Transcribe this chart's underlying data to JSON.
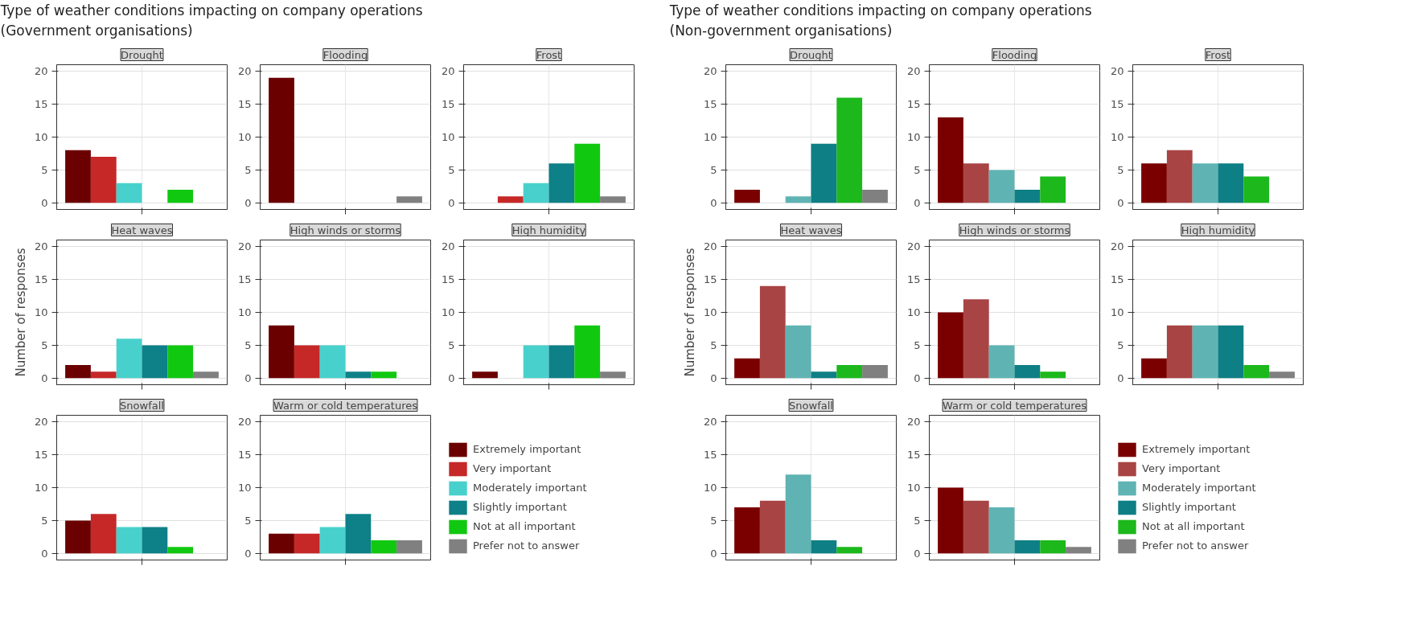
{
  "chart_data": [
    {
      "type": "other",
      "title": "Type of weather conditions impacting on company operations\n (Government organisations)"
    },
    {
      "type": "bar",
      "title": "Drought",
      "categories": [
        null
      ],
      "ylim": [
        -1,
        21
      ],
      "yticks": [
        0,
        5,
        10,
        15,
        20
      ],
      "grid": true,
      "tick_labels": "y",
      "series": [
        {
          "color": "#6b0000",
          "values": [
            8
          ]
        },
        {
          "color": "#c62828",
          "values": [
            7
          ]
        },
        {
          "color": "#48d1cc",
          "values": [
            3
          ]
        },
        {
          "values": [
            null
          ]
        },
        {
          "color": "#11c811",
          "values": [
            2
          ]
        },
        {
          "values": [
            null
          ]
        }
      ]
    },
    {
      "type": "bar",
      "title": "Flooding",
      "categories": [
        null
      ],
      "ylim": [
        -1,
        21
      ],
      "yticks": [
        0,
        5,
        10,
        15,
        20
      ],
      "grid": true,
      "tick_labels": "y",
      "series": [
        {
          "color": "#6b0000",
          "values": [
            19
          ]
        },
        {
          "values": [
            null
          ]
        },
        {
          "values": [
            null
          ]
        },
        {
          "values": [
            null
          ]
        },
        {
          "values": [
            null
          ]
        },
        {
          "color": "#808080",
          "values": [
            1
          ]
        }
      ]
    },
    {
      "type": "bar",
      "title": "Frost",
      "categories": [
        null
      ],
      "ylim": [
        -1,
        21
      ],
      "yticks": [
        0,
        5,
        10,
        15,
        20
      ],
      "grid": true,
      "tick_labels": "y",
      "series": [
        {
          "values": [
            null
          ]
        },
        {
          "color": "#c62828",
          "values": [
            1
          ]
        },
        {
          "color": "#48d1cc",
          "values": [
            3
          ]
        },
        {
          "color": "#0e8088",
          "values": [
            6
          ]
        },
        {
          "color": "#11c811",
          "values": [
            9
          ]
        },
        {
          "color": "#808080",
          "values": [
            1
          ]
        }
      ]
    },
    {
      "type": "bar",
      "title": "Heat waves",
      "ylabel": "Number of responses",
      "categories": [
        null
      ],
      "ylim": [
        -1,
        21
      ],
      "yticks": [
        0,
        5,
        10,
        15,
        20
      ],
      "grid": true,
      "tick_labels": "y",
      "series": [
        {
          "color": "#6b0000",
          "values": [
            2
          ]
        },
        {
          "color": "#c62828",
          "values": [
            1
          ]
        },
        {
          "color": "#48d1cc",
          "values": [
            6
          ]
        },
        {
          "color": "#0e8088",
          "values": [
            5
          ]
        },
        {
          "color": "#11c811",
          "values": [
            5
          ]
        },
        {
          "color": "#808080",
          "values": [
            1
          ]
        }
      ]
    },
    {
      "type": "bar",
      "title": "High winds or storms",
      "categories": [
        null
      ],
      "ylim": [
        -1,
        21
      ],
      "yticks": [
        0,
        5,
        10,
        15,
        20
      ],
      "grid": true,
      "tick_labels": "y",
      "series": [
        {
          "color": "#6b0000",
          "values": [
            8
          ]
        },
        {
          "color": "#c62828",
          "values": [
            5
          ]
        },
        {
          "color": "#48d1cc",
          "values": [
            5
          ]
        },
        {
          "color": "#0e8088",
          "values": [
            1
          ]
        },
        {
          "color": "#11c811",
          "values": [
            1
          ]
        },
        {
          "values": [
            null
          ]
        }
      ]
    },
    {
      "type": "bar",
      "title": "High humidity",
      "categories": [
        null
      ],
      "ylim": [
        -1,
        21
      ],
      "yticks": [
        0,
        5,
        10,
        15,
        20
      ],
      "grid": true,
      "tick_labels": "y",
      "series": [
        {
          "color": "#6b0000",
          "values": [
            1
          ]
        },
        {
          "values": [
            null
          ]
        },
        {
          "color": "#48d1cc",
          "values": [
            5
          ]
        },
        {
          "color": "#0e8088",
          "values": [
            5
          ]
        },
        {
          "color": "#11c811",
          "values": [
            8
          ]
        },
        {
          "color": "#808080",
          "values": [
            1
          ]
        }
      ]
    },
    {
      "type": "bar",
      "title": "Snowfall",
      "categories": [
        null
      ],
      "ylim": [
        -1,
        21
      ],
      "yticks": [
        0,
        5,
        10,
        15,
        20
      ],
      "grid": true,
      "tick_labels": "y",
      "series": [
        {
          "color": "#6b0000",
          "values": [
            5
          ]
        },
        {
          "color": "#c62828",
          "values": [
            6
          ]
        },
        {
          "color": "#48d1cc",
          "values": [
            4
          ]
        },
        {
          "color": "#0e8088",
          "values": [
            4
          ]
        },
        {
          "color": "#11c811",
          "values": [
            1
          ]
        },
        {
          "values": [
            null
          ]
        }
      ]
    },
    {
      "type": "bar",
      "title": "Warm or cold temperatures",
      "categories": [
        null
      ],
      "ylim": [
        -1,
        21
      ],
      "yticks": [
        0,
        5,
        10,
        15,
        20
      ],
      "grid": true,
      "tick_labels": "y",
      "legend": "right",
      "series": [
        {
          "name": "Extremely important",
          "color": "#6b0000",
          "values": [
            3
          ]
        },
        {
          "name": "Very important",
          "color": "#c62828",
          "values": [
            3
          ]
        },
        {
          "name": "Moderately important",
          "color": "#48d1cc",
          "values": [
            4
          ]
        },
        {
          "name": "Slightly important",
          "color": "#0e8088",
          "values": [
            6
          ]
        },
        {
          "name": "Not at all important",
          "color": "#11c811",
          "values": [
            2
          ]
        },
        {
          "name": "Prefer not to answer",
          "color": "#808080",
          "values": [
            2
          ]
        }
      ]
    },
    {
      "type": "other",
      "title": "Type of weather conditions impacting on company operations\n (Non-government organisations)"
    },
    {
      "type": "bar",
      "title": "Drought",
      "categories": [
        null
      ],
      "ylim": [
        -1,
        21
      ],
      "yticks": [
        0,
        5,
        10,
        15,
        20
      ],
      "grid": true,
      "tick_labels": "y",
      "series": [
        {
          "color": "#7a0000",
          "values": [
            2
          ]
        },
        {
          "values": [
            null
          ]
        },
        {
          "color": "#5fb3b3",
          "values": [
            1
          ]
        },
        {
          "color": "#0e7f85",
          "values": [
            9
          ]
        },
        {
          "color": "#1cb81c",
          "values": [
            16
          ]
        },
        {
          "color": "#808080",
          "values": [
            2
          ]
        }
      ]
    },
    {
      "type": "bar",
      "title": "Flooding",
      "categories": [
        null
      ],
      "ylim": [
        -1,
        21
      ],
      "yticks": [
        0,
        5,
        10,
        15,
        20
      ],
      "grid": true,
      "tick_labels": "y",
      "series": [
        {
          "color": "#7a0000",
          "values": [
            13
          ]
        },
        {
          "color": "#a84444",
          "values": [
            6
          ]
        },
        {
          "color": "#5fb3b3",
          "values": [
            5
          ]
        },
        {
          "color": "#0e7f85",
          "values": [
            2
          ]
        },
        {
          "color": "#1cb81c",
          "values": [
            4
          ]
        },
        {
          "values": [
            null
          ]
        }
      ]
    },
    {
      "type": "bar",
      "title": "Frost",
      "categories": [
        null
      ],
      "ylim": [
        -1,
        21
      ],
      "yticks": [
        0,
        5,
        10,
        15,
        20
      ],
      "grid": true,
      "tick_labels": "y",
      "series": [
        {
          "color": "#7a0000",
          "values": [
            6
          ]
        },
        {
          "color": "#a84444",
          "values": [
            8
          ]
        },
        {
          "color": "#5fb3b3",
          "values": [
            6
          ]
        },
        {
          "color": "#0e7f85",
          "values": [
            6
          ]
        },
        {
          "color": "#1cb81c",
          "values": [
            4
          ]
        },
        {
          "values": [
            null
          ]
        }
      ]
    },
    {
      "type": "bar",
      "title": "Heat waves",
      "ylabel": "Number of responses",
      "categories": [
        null
      ],
      "ylim": [
        -1,
        21
      ],
      "yticks": [
        0,
        5,
        10,
        15,
        20
      ],
      "grid": true,
      "tick_labels": "y",
      "series": [
        {
          "color": "#7a0000",
          "values": [
            3
          ]
        },
        {
          "color": "#a84444",
          "values": [
            14
          ]
        },
        {
          "color": "#5fb3b3",
          "values": [
            8
          ]
        },
        {
          "color": "#0e7f85",
          "values": [
            1
          ]
        },
        {
          "color": "#1cb81c",
          "values": [
            2
          ]
        },
        {
          "color": "#808080",
          "values": [
            2
          ]
        }
      ]
    },
    {
      "type": "bar",
      "title": "High winds or storms",
      "categories": [
        null
      ],
      "ylim": [
        -1,
        21
      ],
      "yticks": [
        0,
        5,
        10,
        15,
        20
      ],
      "grid": true,
      "tick_labels": "y",
      "series": [
        {
          "color": "#7a0000",
          "values": [
            10
          ]
        },
        {
          "color": "#a84444",
          "values": [
            12
          ]
        },
        {
          "color": "#5fb3b3",
          "values": [
            5
          ]
        },
        {
          "color": "#0e7f85",
          "values": [
            2
          ]
        },
        {
          "color": "#1cb81c",
          "values": [
            1
          ]
        },
        {
          "values": [
            null
          ]
        }
      ]
    },
    {
      "type": "bar",
      "title": "High humidity",
      "categories": [
        null
      ],
      "ylim": [
        -1,
        21
      ],
      "yticks": [
        0,
        5,
        10,
        15,
        20
      ],
      "grid": true,
      "tick_labels": "y",
      "series": [
        {
          "color": "#7a0000",
          "values": [
            3
          ]
        },
        {
          "color": "#a84444",
          "values": [
            8
          ]
        },
        {
          "color": "#5fb3b3",
          "values": [
            8
          ]
        },
        {
          "color": "#0e7f85",
          "values": [
            8
          ]
        },
        {
          "color": "#1cb81c",
          "values": [
            2
          ]
        },
        {
          "color": "#808080",
          "values": [
            1
          ]
        }
      ]
    },
    {
      "type": "bar",
      "title": "Snowfall",
      "categories": [
        null
      ],
      "ylim": [
        -1,
        21
      ],
      "yticks": [
        0,
        5,
        10,
        15,
        20
      ],
      "grid": true,
      "tick_labels": "y",
      "series": [
        {
          "color": "#7a0000",
          "values": [
            7
          ]
        },
        {
          "color": "#a84444",
          "values": [
            8
          ]
        },
        {
          "color": "#5fb3b3",
          "values": [
            12
          ]
        },
        {
          "color": "#0e7f85",
          "values": [
            2
          ]
        },
        {
          "color": "#1cb81c",
          "values": [
            1
          ]
        },
        {
          "values": [
            null
          ]
        }
      ]
    },
    {
      "type": "bar",
      "title": "Warm or cold temperatures",
      "categories": [
        null
      ],
      "ylim": [
        -1,
        21
      ],
      "yticks": [
        0,
        5,
        10,
        15,
        20
      ],
      "grid": true,
      "tick_labels": "y",
      "legend": "right",
      "series": [
        {
          "name": "Extremely important",
          "color": "#7a0000",
          "values": [
            10
          ]
        },
        {
          "name": "Very important",
          "color": "#a84444",
          "values": [
            8
          ]
        },
        {
          "name": "Moderately important",
          "color": "#5fb3b3",
          "values": [
            7
          ]
        },
        {
          "name": "Slightly important",
          "color": "#0e7f85",
          "values": [
            2
          ]
        },
        {
          "name": "Not at all important",
          "color": "#1cb81c",
          "values": [
            2
          ]
        },
        {
          "name": "Prefer not to answer",
          "color": "#808080",
          "values": [
            1
          ]
        }
      ]
    }
  ]
}
